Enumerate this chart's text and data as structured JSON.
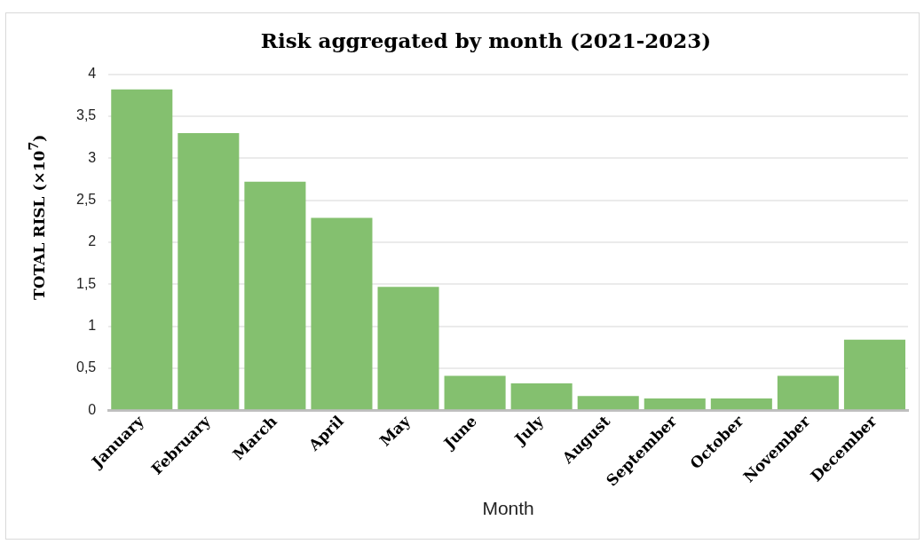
{
  "chart_data": {
    "type": "bar",
    "title": "Risk aggregated by month (2021-2023)",
    "xlabel": "Month",
    "ylabel": "TOTAL RISL (×10$^{7}$)",
    "categories": [
      "January",
      "February",
      "March",
      "April",
      "May",
      "June",
      "July",
      "August",
      "September",
      "October",
      "November",
      "December"
    ],
    "values": [
      3.82,
      3.3,
      2.72,
      2.29,
      1.47,
      0.41,
      0.32,
      0.17,
      0.14,
      0.14,
      0.41,
      0.84
    ],
    "color": "#84c06f",
    "ylim": [
      0,
      4
    ],
    "yticks": [
      0,
      {
        "value": 0.5,
        "label": "0,5"
      },
      1,
      {
        "value": 1.5,
        "label": "1,5"
      },
      2,
      {
        "value": 2.5,
        "label": "2,5"
      },
      3,
      {
        "value": 3.5,
        "label": "3,5"
      },
      4
    ],
    "grid": "y",
    "legend": false
  }
}
